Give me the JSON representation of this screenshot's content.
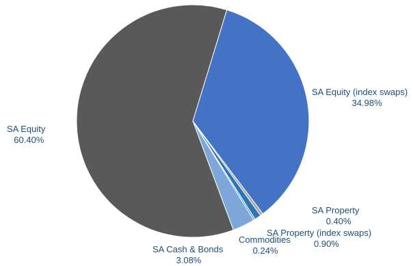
{
  "chart_data": {
    "type": "pie",
    "slices": [
      {
        "name": "SA Equity (index swaps)",
        "value": 34.98,
        "value_label": "34.98%",
        "color": "#4472c4"
      },
      {
        "name": "SA Property",
        "value": 0.4,
        "value_label": "0.40%",
        "color": "#a5a5a5"
      },
      {
        "name": "SA Property (index swaps)",
        "value": 0.9,
        "value_label": "0.90%",
        "color": "#2e75b6"
      },
      {
        "name": "Commodities",
        "value": 0.24,
        "value_label": "0.24%",
        "color": "#5b9bd5"
      },
      {
        "name": "SA Cash & Bonds",
        "value": 3.08,
        "value_label": "3.08%",
        "color": "#7da7d9"
      },
      {
        "name": "SA Equity",
        "value": 60.4,
        "value_label": "60.40%",
        "color": "#595959"
      }
    ],
    "legend": "none",
    "data_labels": "outside"
  }
}
